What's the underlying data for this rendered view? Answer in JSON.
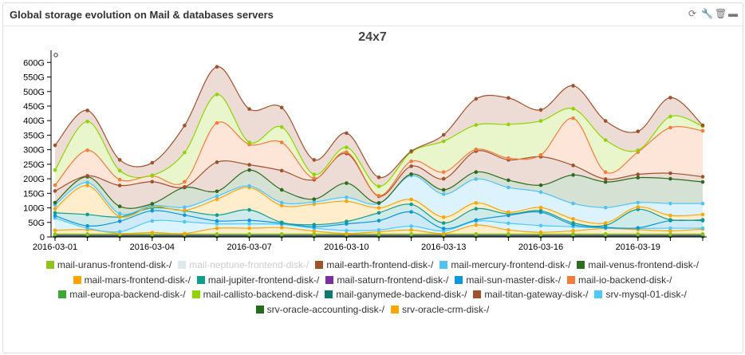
{
  "panel": {
    "title": "Global storage evolution on Mail & databases servers",
    "tools": [
      {
        "icon": "refresh-icon",
        "glyph": "⟳"
      },
      {
        "icon": "wrench-icon",
        "glyph": "🔧"
      },
      {
        "icon": "trash-icon",
        "glyph": "🗑"
      },
      {
        "icon": "minimize-icon",
        "glyph": "▬"
      }
    ]
  },
  "chart_data": {
    "type": "area",
    "stacked": true,
    "title": "24x7",
    "xlabel": "",
    "ylabel": "",
    "ylim": [
      0,
      600
    ],
    "y_unit": "G",
    "yticks": [
      "0",
      "50G",
      "100G",
      "150G",
      "200G",
      "250G",
      "300G",
      "350G",
      "400G",
      "450G",
      "500G",
      "550G",
      "600G"
    ],
    "x": [
      "2016-03-01",
      "2016-03-02",
      "2016-03-03",
      "2016-03-04",
      "2016-03-05",
      "2016-03-06",
      "2016-03-07",
      "2016-03-08",
      "2016-03-09",
      "2016-03-10",
      "2016-03-11",
      "2016-03-12",
      "2016-03-13",
      "2016-03-14",
      "2016-03-15",
      "2016-03-16",
      "2016-03-17",
      "2016-03-18",
      "2016-03-19",
      "2016-03-20",
      "2016-03-21"
    ],
    "xtick_labels": [
      "2016-03-01",
      "2016-03-04",
      "2016-03-07",
      "2016-03-10",
      "2016-03-13",
      "2016-03-16",
      "2016-03-19"
    ],
    "legend_position": "bottom",
    "legend": [
      "mail-uranus-frontend-disk-/",
      "mail-neptune-frontend-disk-/",
      "mail-earth-frontend-disk-/",
      "mail-mercury-frontend-disk-/",
      "mail-venus-frontend-disk-/",
      "mail-mars-frontend-disk-/",
      "mail-jupiter-frontend-disk-/",
      "mail-saturn-frontend-disk-/",
      "mail-sun-master-disk-/",
      "mail-io-backend-disk-/",
      "mail-europa-backend-disk-/",
      "mail-callisto-backend-disk-/",
      "mail-ganymede-backend-disk-/",
      "mail-titan-gateway-disk-/",
      "srv-mysql-01-disk-/",
      "srv-oracle-accounting-disk-/",
      "srv-oracle-crm-disk-/"
    ],
    "series": [
      {
        "name": "srv-oracle-accounting-disk-/",
        "color": "#256b1a",
        "values": [
          2,
          2,
          2,
          2,
          2,
          2,
          2,
          2,
          2,
          2,
          2,
          2,
          2,
          2,
          2,
          2,
          2,
          2,
          2,
          2,
          2
        ]
      },
      {
        "name": "mail-ganymede-backend-disk-/",
        "color": "#0d7a6c",
        "values": [
          2,
          2,
          2,
          2,
          2,
          2,
          2,
          2,
          2,
          2,
          2,
          2,
          2,
          2,
          2,
          2,
          2,
          2,
          2,
          2,
          2
        ]
      },
      {
        "name": "mail-saturn-frontend-disk-/",
        "color": "#7b2fa0",
        "values": [
          0,
          0,
          0,
          0,
          0,
          0,
          0,
          0,
          0,
          0,
          0,
          0,
          0,
          0,
          0,
          0,
          0,
          0,
          0,
          0,
          0
        ]
      },
      {
        "name": "mail-neptune-frontend-disk-/",
        "color": "#dde9ea",
        "disabled": true,
        "values": [
          0,
          0,
          0,
          0,
          0,
          0,
          0,
          0,
          0,
          0,
          0,
          0,
          0,
          0,
          0,
          0,
          0,
          0,
          0,
          0,
          0
        ]
      },
      {
        "name": "mail-europa-backend-disk-/",
        "color": "#3da835",
        "values": [
          3,
          3,
          3,
          3,
          3,
          3,
          3,
          3,
          3,
          3,
          3,
          3,
          3,
          3,
          3,
          3,
          3,
          3,
          3,
          3,
          3
        ]
      },
      {
        "name": "mail-uranus-frontend-disk-/",
        "color": "#8fc31f",
        "values": [
          3,
          3,
          3,
          3,
          3,
          3,
          3,
          3,
          3,
          3,
          3,
          3,
          3,
          3,
          3,
          3,
          3,
          3,
          3,
          3,
          3
        ]
      },
      {
        "name": "srv-oracle-crm-disk-/",
        "color": "#ffa500",
        "values": [
          13,
          15,
          2,
          5,
          2,
          20,
          20,
          22,
          10,
          2,
          8,
          14,
          2,
          31,
          14,
          6,
          11,
          19,
          15,
          11,
          17
        ]
      },
      {
        "name": "srv-mysql-01-disk-/",
        "color": "#4fc8f8",
        "values": [
          42,
          5,
          6,
          40,
          40,
          15,
          15,
          11,
          10,
          10,
          6,
          13,
          9,
          13,
          23,
          23,
          14,
          1,
          4,
          9,
          3
        ]
      },
      {
        "name": "mail-sun-master-disk-/",
        "color": "#0b98d8",
        "values": [
          8,
          8,
          36,
          35,
          23,
          10,
          12,
          4,
          5,
          23,
          32,
          49,
          8,
          4,
          27,
          46,
          7,
          3,
          2,
          26,
          26
        ]
      },
      {
        "name": "mail-jupiter-frontend-disk-/",
        "color": "#0f9d8f",
        "values": [
          10,
          39,
          15,
          10,
          15,
          20,
          36,
          3,
          7,
          8,
          27,
          26,
          19,
          39,
          5,
          5,
          6,
          7,
          64,
          3,
          3
        ]
      },
      {
        "name": "mail-mars-frontend-disk-/",
        "color": "#ffa500",
        "values": [
          14,
          100,
          1,
          5,
          2,
          55,
          77,
          58,
          71,
          70,
          17,
          17,
          20,
          20,
          6,
          11,
          14,
          8,
          8,
          15,
          18
        ]
      },
      {
        "name": "mail-mercury-frontend-disk-/",
        "color": "#4fc3f7",
        "values": [
          13,
          10,
          10,
          3,
          10,
          10,
          5,
          10,
          7,
          13,
          15,
          82,
          79,
          82,
          85,
          53,
          53,
          53,
          15,
          41,
          38
        ]
      },
      {
        "name": "mail-venus-frontend-disk-/",
        "color": "#2e6b1e",
        "values": [
          8,
          20,
          25,
          6,
          68,
          17,
          55,
          44,
          10,
          49,
          2,
          5,
          15,
          24,
          25,
          24,
          98,
          88,
          86,
          85,
          74
        ]
      },
      {
        "name": "mail-earth-frontend-disk-/",
        "color": "#a0522d",
        "values": [
          40,
          3,
          72,
          76,
          2,
          100,
          18,
          66,
          67,
          102,
          23,
          27,
          38,
          72,
          70,
          98,
          33,
          10,
          11,
          19,
          18
        ]
      },
      {
        "name": "mail-io-backend-disk-/",
        "color": "#f47c3c",
        "values": [
          20,
          88,
          20,
          20,
          18,
          135,
          70,
          97,
          5,
          5,
          2,
          17,
          23,
          6,
          6,
          6,
          162,
          24,
          77,
          157,
          158
        ]
      },
      {
        "name": "mail-callisto-backend-disk-/",
        "color": "#8fd400",
        "values": [
          52,
          99,
          31,
          2,
          100,
          98,
          7,
          53,
          13,
          16,
          32,
          32,
          106,
          84,
          116,
          117,
          33,
          110,
          6,
          38,
          16
        ]
      },
      {
        "name": "mail-titan-gateway-disk-/",
        "color": "#a0522d",
        "values": [
          85,
          38,
          37,
          43,
          93,
          95,
          115,
          67,
          50,
          49,
          31,
          3,
          22,
          90,
          91,
          38,
          79,
          66,
          65,
          65,
          3
        ]
      }
    ]
  }
}
